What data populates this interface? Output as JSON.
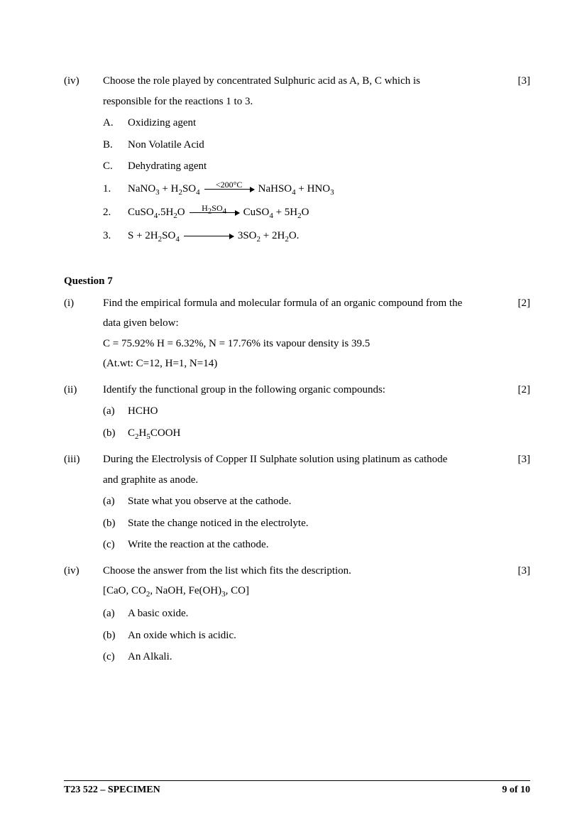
{
  "q6": {
    "iv": {
      "num": "(iv)",
      "text_line1": "Choose the role played by concentrated Sulphuric acid as A, B, C which is",
      "text_line2": "responsible for the reactions 1 to 3.",
      "marks": "[3]",
      "options": {
        "A": {
          "label": "A.",
          "text": "Oxidizing agent"
        },
        "B": {
          "label": "B.",
          "text": "Non Volatile Acid"
        },
        "C": {
          "label": "C.",
          "text": "Dehydrating agent"
        }
      },
      "reactions": {
        "r1": {
          "num": "1.",
          "left": "NaNO₃ + H₂SO₄",
          "arrow_label": "<200°C",
          "right": "NaHSO₄ + HNO₃"
        },
        "r2": {
          "num": "2.",
          "left": "CuSO₄.5H₂O",
          "arrow_label": "H₂SO₄",
          "right": "CuSO₄ + 5H₂O"
        },
        "r3": {
          "num": "3.",
          "left": "S + 2H₂SO₄",
          "arrow_label": "",
          "right": "3SO₂ + 2H₂O."
        }
      }
    }
  },
  "q7": {
    "heading": "Question 7",
    "i": {
      "num": "(i)",
      "line1": "Find the empirical formula and molecular formula of an organic compound from the",
      "line2": "data given below:",
      "line3": "C = 75.92% H = 6.32%, N = 17.76% its vapour density is 39.5",
      "line4": "(At.wt: C=12, H=1, N=14)",
      "marks": "[2]"
    },
    "ii": {
      "num": "(ii)",
      "text": "Identify the functional group in the following organic compounds:",
      "marks": "[2]",
      "a": {
        "label": "(a)",
        "text": "HCHO"
      },
      "b": {
        "label": "(b)",
        "text": "C₂H₅COOH"
      }
    },
    "iii": {
      "num": "(iii)",
      "line1": "During the Electrolysis of Copper II Sulphate solution using platinum as cathode",
      "line2": "and graphite as anode.",
      "marks": "[3]",
      "a": {
        "label": "(a)",
        "text": "State what you observe at the cathode."
      },
      "b": {
        "label": "(b)",
        "text": "State the change noticed in the electrolyte."
      },
      "c": {
        "label": "(c)",
        "text": "Write the reaction at the cathode."
      }
    },
    "iv": {
      "num": "(iv)",
      "text": "Choose the answer from the list which fits the description.",
      "list": "[CaO, CO₂, NaOH, Fe(OH)₃, CO]",
      "marks": "[3]",
      "a": {
        "label": "(a)",
        "text": "A basic oxide."
      },
      "b": {
        "label": "(b)",
        "text": "An oxide which is acidic."
      },
      "c": {
        "label": "(c)",
        "text": "An Alkali."
      }
    }
  },
  "footer": {
    "left": "T23 522 – SPECIMEN",
    "right": "9 of 10"
  }
}
